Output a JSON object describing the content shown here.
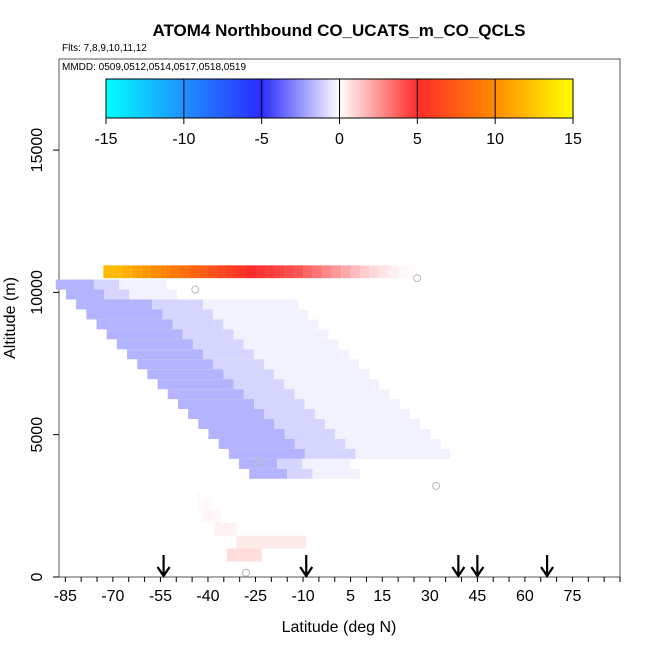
{
  "chart_data": {
    "type": "heatmap",
    "title": "ATOM4 Northbound CO_UCATS_m_CO_QCLS",
    "flights_label": "Flts: 7,8,9,10,11,12",
    "dates_label": "MMDD: 0509,0512,0514,0517,0518,0519",
    "xlabel": "Latitude (deg N)",
    "ylabel": "Altitude (m)",
    "xlim": [
      -87,
      90
    ],
    "ylim": [
      0,
      18200
    ],
    "x_ticks": [
      -85,
      -70,
      -55,
      -40,
      -25,
      -10,
      5,
      15,
      30,
      45,
      60,
      75
    ],
    "x_tick_labels": [
      "-85",
      "-70",
      "-55",
      "-40",
      "-25",
      "-10",
      "5",
      "15",
      "30",
      "45",
      "60",
      "75"
    ],
    "y_ticks": [
      0,
      5000,
      10000,
      15000
    ],
    "y_tick_labels": [
      "0",
      "5000",
      "10000",
      "15000"
    ],
    "colorbar": {
      "range": [
        -15,
        15
      ],
      "ticks": [
        -15,
        -10,
        -5,
        0,
        5,
        10,
        15
      ],
      "tick_labels": [
        "-15",
        "-10",
        "-5",
        "0",
        "5",
        "10",
        "15"
      ],
      "stops": [
        {
          "v": -15,
          "color": "#00ffff"
        },
        {
          "v": -10,
          "color": "#1e90ff"
        },
        {
          "v": -5,
          "color": "#2b2bff"
        },
        {
          "v": 0,
          "color": "#ffffff"
        },
        {
          "v": 5,
          "color": "#ff2b2b"
        },
        {
          "v": 10,
          "color": "#ff8c00"
        },
        {
          "v": 15,
          "color": "#ffff00"
        }
      ]
    },
    "arrow_latitudes": [
      -54,
      -9,
      39,
      45,
      67
    ],
    "marker_points": [
      {
        "lat": -44,
        "alt": 10100
      },
      {
        "lat": 26,
        "alt": 10500
      },
      {
        "lat": -24,
        "alt": 4050
      },
      {
        "lat": 32,
        "alt": 3200
      },
      {
        "lat": -28,
        "alt": 150
      }
    ],
    "upper_layer": {
      "alt_bottom": 10500,
      "alt_top": 10950,
      "lat_start": -73,
      "lat_end": 24,
      "lat_step": 3,
      "values": [
        12,
        12,
        11.5,
        11,
        10.5,
        10,
        9.5,
        9,
        8.5,
        8,
        7.5,
        7,
        6.5,
        6,
        5.5,
        5,
        4.8,
        4.6,
        4.4,
        4.2,
        4,
        3.6,
        3.2,
        2.8,
        2.4,
        2,
        1.6,
        1.2,
        0.9,
        0.6,
        0.4,
        0.2,
        0.1
      ]
    },
    "negative_band": {
      "alt_top": 10450,
      "alt_bottom": 3500,
      "alt_step": 350,
      "lat_start_top": -88,
      "lat_start_bottom": -27,
      "width_core": 24,
      "width_mid": 16,
      "width_outer": 30,
      "value_core": -1.8,
      "value_mid": -1.0,
      "value_outer": -0.3
    },
    "low_cells": [
      {
        "lat0": -34,
        "lat1": -23,
        "alt0": 550,
        "alt1": 1000,
        "value": 0.8
      },
      {
        "lat0": -31,
        "lat1": -9,
        "alt0": 1000,
        "alt1": 1450,
        "value": 0.5
      },
      {
        "lat0": -38,
        "lat1": -31,
        "alt0": 1450,
        "alt1": 1900,
        "value": 0.3
      },
      {
        "lat0": -42,
        "lat1": -36,
        "alt0": 1900,
        "alt1": 2350,
        "value": 0.2
      },
      {
        "lat0": -43,
        "lat1": -39,
        "alt0": 2350,
        "alt1": 2800,
        "value": 0.15
      },
      {
        "lat0": -44,
        "lat1": -42,
        "alt0": 2800,
        "alt1": 3000,
        "value": 0.1
      }
    ]
  }
}
